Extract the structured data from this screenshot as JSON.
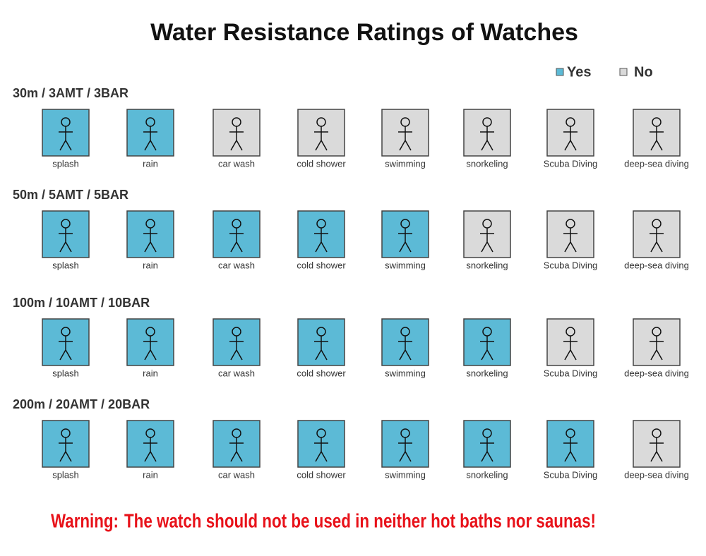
{
  "title": "Water Resistance Ratings of Watches",
  "legend": {
    "yes": {
      "label": "Yes",
      "color": "#5cbad6"
    },
    "no": {
      "label": "No",
      "color": "#dadada"
    }
  },
  "rows": [
    {
      "label": "30m / 3AMT / 3BAR",
      "items": [
        {
          "label": "splash",
          "rated": true
        },
        {
          "label": "rain",
          "rated": true
        },
        {
          "label": "car wash",
          "rated": false
        },
        {
          "label": "cold shower",
          "rated": false
        },
        {
          "label": "swimming",
          "rated": false
        },
        {
          "label": "snorkeling",
          "rated": false
        },
        {
          "label": "Scuba Diving",
          "rated": false
        },
        {
          "label": "deep-sea diving",
          "rated": false
        }
      ]
    },
    {
      "label": "50m / 5AMT / 5BAR",
      "items": [
        {
          "label": "splash",
          "rated": true
        },
        {
          "label": "rain",
          "rated": true
        },
        {
          "label": "car wash",
          "rated": true
        },
        {
          "label": "cold shower",
          "rated": true
        },
        {
          "label": "swimming",
          "rated": true
        },
        {
          "label": "snorkeling",
          "rated": false
        },
        {
          "label": "Scuba Diving",
          "rated": false
        },
        {
          "label": "deep-sea diving",
          "rated": false
        }
      ]
    },
    {
      "label": "100m / 10AMT / 10BAR",
      "items": [
        {
          "label": "splash",
          "rated": true
        },
        {
          "label": "rain",
          "rated": true
        },
        {
          "label": "car wash",
          "rated": true
        },
        {
          "label": "cold shower",
          "rated": true
        },
        {
          "label": "swimming",
          "rated": true
        },
        {
          "label": "snorkeling",
          "rated": true
        },
        {
          "label": "Scuba Diving",
          "rated": false
        },
        {
          "label": "deep-sea diving",
          "rated": false
        }
      ]
    },
    {
      "label": "200m / 20AMT / 20BAR",
      "items": [
        {
          "label": "splash",
          "rated": true
        },
        {
          "label": "rain",
          "rated": true
        },
        {
          "label": "car wash",
          "rated": true
        },
        {
          "label": "cold shower",
          "rated": true
        },
        {
          "label": "swimming",
          "rated": true
        },
        {
          "label": "snorkeling",
          "rated": true
        },
        {
          "label": "Scuba Diving",
          "rated": true
        },
        {
          "label": "deep-sea diving",
          "rated": false
        }
      ]
    }
  ],
  "warning": {
    "lead": "Warning:",
    "text": "The watch should not be used in neither hot baths nor saunas!"
  }
}
